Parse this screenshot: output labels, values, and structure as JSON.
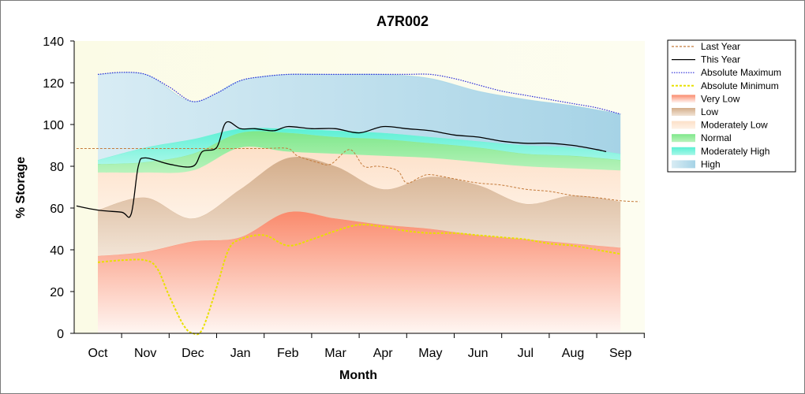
{
  "chart_data": {
    "type": "area",
    "title": "A7R002",
    "xlabel": "Month",
    "ylabel": "% Storage",
    "ylim": [
      0,
      140
    ],
    "yticks": [
      "0",
      "20",
      "40",
      "60",
      "80",
      "100",
      "120",
      "140"
    ],
    "categories": [
      "Oct",
      "Nov",
      "Dec",
      "Jan",
      "Feb",
      "Mar",
      "Apr",
      "May",
      "Jun",
      "Jul",
      "Aug",
      "Sep"
    ],
    "grid": false,
    "legend_position": "right",
    "bands": [
      {
        "name": "Very Low",
        "color": "#fa8c6e",
        "lower": [
          0,
          0,
          0,
          0,
          0,
          0,
          0,
          0,
          0,
          0,
          0,
          0
        ],
        "upper": [
          37,
          39,
          44,
          46,
          58,
          55,
          52,
          50,
          47,
          45,
          43,
          41
        ]
      },
      {
        "name": "Low",
        "color": "#d6b190",
        "lower": [
          37,
          39,
          44,
          46,
          58,
          55,
          52,
          50,
          47,
          45,
          43,
          41
        ],
        "upper": [
          59,
          65,
          55,
          69,
          84,
          80,
          69,
          75,
          71,
          62,
          66,
          63
        ]
      },
      {
        "name": "Moderately Low",
        "color": "#fde3cc",
        "lower": [
          59,
          65,
          55,
          69,
          84,
          80,
          69,
          75,
          71,
          62,
          66,
          63
        ],
        "upper": [
          77,
          77,
          78,
          89,
          87,
          86,
          85,
          84,
          82,
          80,
          79,
          78
        ]
      },
      {
        "name": "Normal",
        "color": "#86e890",
        "lower": [
          77,
          77,
          78,
          89,
          87,
          86,
          85,
          84,
          82,
          80,
          79,
          78
        ],
        "upper": [
          81,
          82,
          86,
          96,
          96,
          94,
          93,
          91,
          89,
          86,
          85,
          83
        ]
      },
      {
        "name": "Moderately High",
        "color": "#6ef0d6",
        "lower": [
          81,
          82,
          86,
          96,
          96,
          94,
          93,
          91,
          89,
          86,
          85,
          83
        ],
        "upper": [
          83,
          89,
          93,
          98,
          98,
          97,
          96,
          94,
          92,
          90,
          89,
          86
        ]
      },
      {
        "name": "High",
        "color": "#9dd1e6",
        "lower": [
          83,
          89,
          93,
          98,
          98,
          97,
          96,
          94,
          92,
          90,
          89,
          86
        ],
        "upper": [
          124,
          124,
          111,
          121,
          124,
          124,
          124,
          122,
          116,
          112,
          109,
          105
        ]
      }
    ],
    "series": [
      {
        "name": "Last Year",
        "color": "#c47a3a",
        "style": "dashed",
        "x": [
          -0.45,
          0,
          0.5,
          1,
          1.5,
          2,
          2.5,
          3,
          3.5,
          4,
          4.2,
          4.6,
          4.9,
          5.3,
          5.6,
          5.9,
          6.3,
          6.5,
          6.8,
          7,
          7.5,
          8,
          8.5,
          9,
          9.5,
          10,
          10.5,
          11,
          11.4
        ],
        "values": [
          88.5,
          88.5,
          88.5,
          88.5,
          88.5,
          88.5,
          88.5,
          88.5,
          88.5,
          88.5,
          85,
          82,
          81,
          88,
          80,
          80,
          78,
          72,
          75,
          76,
          74,
          72,
          71,
          69,
          68,
          66,
          65,
          63.5,
          63
        ]
      },
      {
        "name": "This Year",
        "color": "#000000",
        "style": "solid",
        "x": [
          -0.45,
          0,
          0.5,
          0.7,
          0.85,
          1,
          1.5,
          2,
          2.2,
          2.5,
          2.7,
          3,
          3.3,
          3.7,
          4,
          4.5,
          5,
          5.5,
          6,
          6.5,
          7,
          7.5,
          8,
          8.5,
          9,
          9.5,
          10,
          10.5,
          10.7
        ],
        "values": [
          61,
          59,
          58,
          57,
          80,
          84,
          81,
          80,
          87,
          89,
          101,
          98,
          98,
          97,
          99,
          98,
          98,
          96,
          99,
          98,
          97,
          95,
          94,
          92,
          91,
          91,
          90,
          88,
          87
        ]
      },
      {
        "name": "Absolute Maximum",
        "color": "#2a2ad8",
        "style": "dotted",
        "x": [
          0,
          0.5,
          1,
          1.5,
          2,
          2.5,
          3,
          3.5,
          4,
          4.5,
          5,
          5.5,
          6,
          6.5,
          7,
          7.5,
          8,
          8.5,
          9,
          9.5,
          10,
          10.5,
          11
        ],
        "values": [
          124,
          125,
          124,
          118,
          111,
          115,
          121,
          123,
          124,
          124,
          124,
          124,
          124,
          124,
          124,
          122,
          119,
          116,
          114,
          112,
          110,
          108,
          105
        ]
      },
      {
        "name": "Absolute Minimum",
        "color": "#e8e000",
        "style": "dashed",
        "x": [
          0,
          0.5,
          1,
          1.25,
          1.5,
          1.8,
          2,
          2.2,
          2.5,
          2.75,
          3,
          3.5,
          4,
          4.5,
          5,
          5.5,
          6,
          6.5,
          7,
          7.5,
          8,
          8.5,
          9,
          9.5,
          10,
          10.5,
          11
        ],
        "values": [
          34,
          35,
          35,
          31,
          18,
          4,
          0,
          2,
          22,
          40,
          45,
          47,
          42,
          45,
          49,
          52,
          51,
          49,
          48,
          48,
          47,
          46,
          45,
          43,
          42,
          40,
          38
        ]
      }
    ],
    "legend": [
      "Last Year",
      "This Year",
      "Absolute Maximum",
      "Absolute Minimum",
      "Very Low",
      "Low",
      "Moderately Low",
      "Normal",
      "Moderately High",
      "High"
    ]
  }
}
